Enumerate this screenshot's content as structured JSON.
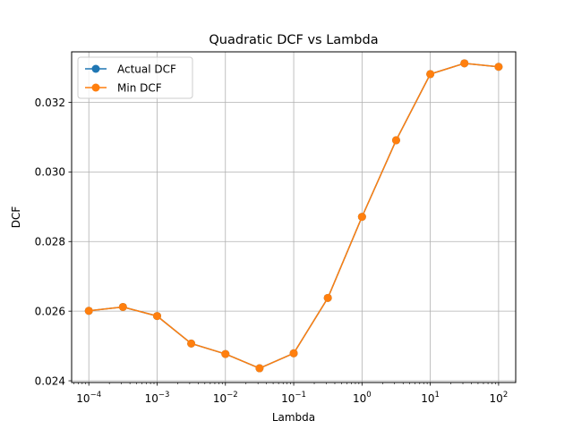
{
  "chart_data": {
    "type": "line",
    "title": "Quadratic DCF vs Lambda",
    "xlabel": "Lambda",
    "ylabel": "DCF",
    "xscale": "log",
    "x": [
      0.0001,
      0.000316,
      0.001,
      0.00316,
      0.01,
      0.0316,
      0.1,
      0.316,
      1,
      3.16,
      10,
      31.6,
      100
    ],
    "xlim": [
      5.6e-05,
      178
    ],
    "ylim": [
      0.02395,
      0.03345
    ],
    "xticks": [
      {
        "value": 0.0001,
        "base": "10",
        "exp": "−4"
      },
      {
        "value": 0.001,
        "base": "10",
        "exp": "−3"
      },
      {
        "value": 0.01,
        "base": "10",
        "exp": "−2"
      },
      {
        "value": 0.1,
        "base": "10",
        "exp": "−1"
      },
      {
        "value": 1,
        "base": "10",
        "exp": "0"
      },
      {
        "value": 10,
        "base": "10",
        "exp": "1"
      },
      {
        "value": 100,
        "base": "10",
        "exp": "2"
      }
    ],
    "yticks": [
      {
        "value": 0.024,
        "label": "0.024"
      },
      {
        "value": 0.026,
        "label": "0.026"
      },
      {
        "value": 0.028,
        "label": "0.028"
      },
      {
        "value": 0.03,
        "label": "0.030"
      },
      {
        "value": 0.032,
        "label": "0.032"
      }
    ],
    "grid": true,
    "legend": "upper-left",
    "series": [
      {
        "name": "Actual DCF",
        "color": "#1f77b4",
        "values": [
          0.02601,
          0.02612,
          0.02586,
          0.02507,
          0.02477,
          0.02436,
          0.02479,
          0.02638,
          0.02871,
          0.03091,
          0.03281,
          0.03312,
          0.03302
        ]
      },
      {
        "name": "Min DCF",
        "color": "#ff7f0e",
        "values": [
          0.02601,
          0.02612,
          0.02586,
          0.02507,
          0.02477,
          0.02436,
          0.02479,
          0.02638,
          0.02871,
          0.03091,
          0.03281,
          0.03312,
          0.03302
        ]
      }
    ]
  }
}
